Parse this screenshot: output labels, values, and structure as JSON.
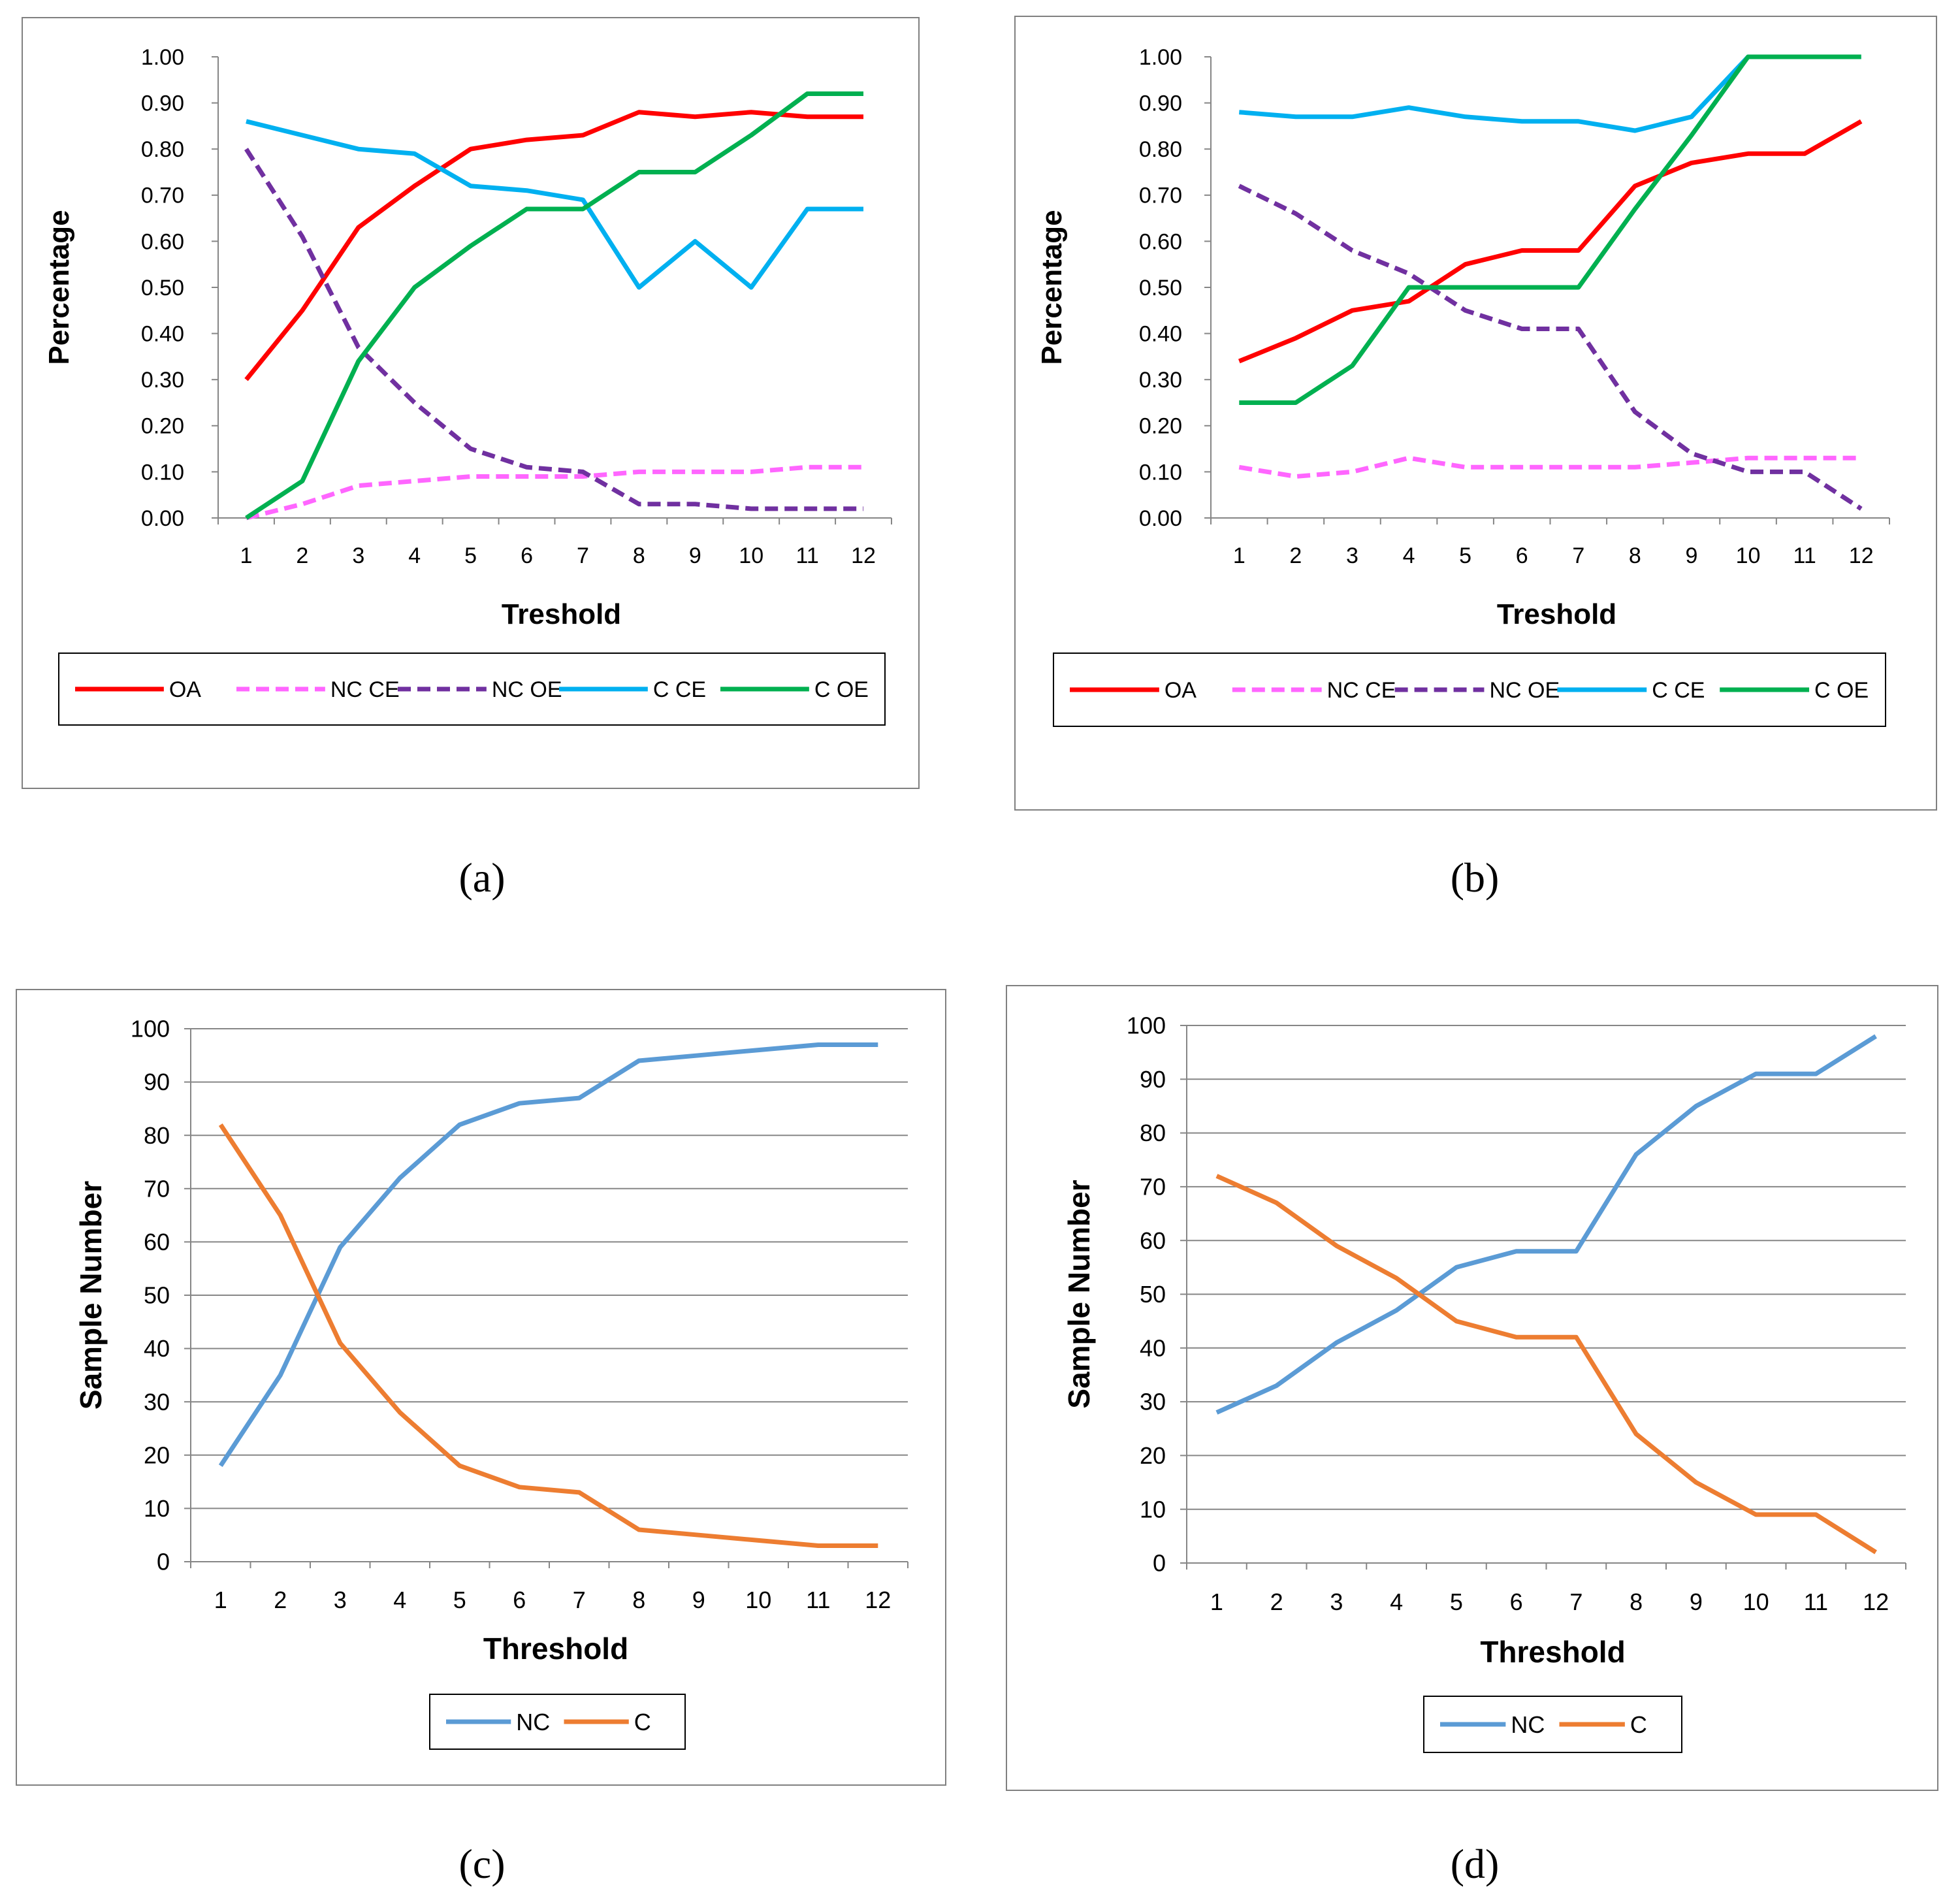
{
  "chart_data": [
    {
      "id": "a",
      "type": "line",
      "caption": "(a)",
      "xlabel": "Treshold",
      "ylabel": "Percentage",
      "x": [
        "1",
        "2",
        "3",
        "4",
        "5",
        "6",
        "7",
        "8",
        "9",
        "10",
        "11",
        "12"
      ],
      "ylim": [
        0,
        1
      ],
      "yticks": [
        "0.00",
        "0.10",
        "0.20",
        "0.30",
        "0.40",
        "0.50",
        "0.60",
        "0.70",
        "0.80",
        "0.90",
        "1.00"
      ],
      "grid": false,
      "legend": "bottom",
      "series": [
        {
          "name": "OA",
          "color": "#ff0000",
          "dash": false,
          "values": [
            0.3,
            0.45,
            0.63,
            0.72,
            0.8,
            0.82,
            0.83,
            0.88,
            0.87,
            0.88,
            0.87,
            0.87
          ]
        },
        {
          "name": "NC CE",
          "color": "#ff66ff",
          "dash": true,
          "values": [
            0.0,
            0.03,
            0.07,
            0.08,
            0.09,
            0.09,
            0.09,
            0.1,
            0.1,
            0.1,
            0.11,
            0.11
          ]
        },
        {
          "name": "NC OE",
          "color": "#7030a0",
          "dash": true,
          "values": [
            0.8,
            0.61,
            0.37,
            0.25,
            0.15,
            0.11,
            0.1,
            0.03,
            0.03,
            0.02,
            0.02,
            0.02
          ]
        },
        {
          "name": "C CE",
          "color": "#00b0f0",
          "dash": false,
          "values": [
            0.86,
            0.83,
            0.8,
            0.79,
            0.72,
            0.71,
            0.69,
            0.5,
            0.6,
            0.5,
            0.67,
            0.67
          ]
        },
        {
          "name": "C OE",
          "color": "#00b050",
          "dash": false,
          "values": [
            0.0,
            0.08,
            0.34,
            0.5,
            0.59,
            0.67,
            0.67,
            0.75,
            0.75,
            0.83,
            0.92,
            0.92
          ]
        }
      ]
    },
    {
      "id": "b",
      "type": "line",
      "caption": "(b)",
      "xlabel": "Treshold",
      "ylabel": "Percentage",
      "x": [
        "1",
        "2",
        "3",
        "4",
        "5",
        "6",
        "7",
        "8",
        "9",
        "10",
        "11",
        "12"
      ],
      "ylim": [
        0,
        1
      ],
      "yticks": [
        "0.00",
        "0.10",
        "0.20",
        "0.30",
        "0.40",
        "0.50",
        "0.60",
        "0.70",
        "0.80",
        "0.90",
        "1.00"
      ],
      "grid": false,
      "legend": "bottom",
      "series": [
        {
          "name": "OA",
          "color": "#ff0000",
          "dash": false,
          "values": [
            0.34,
            0.39,
            0.45,
            0.47,
            0.55,
            0.58,
            0.58,
            0.72,
            0.77,
            0.79,
            0.79,
            0.86
          ]
        },
        {
          "name": "NC CE",
          "color": "#ff66ff",
          "dash": true,
          "values": [
            0.11,
            0.09,
            0.1,
            0.13,
            0.11,
            0.11,
            0.11,
            0.11,
            0.12,
            0.13,
            0.13,
            0.13
          ]
        },
        {
          "name": "NC OE",
          "color": "#7030a0",
          "dash": true,
          "values": [
            0.72,
            0.66,
            0.58,
            0.53,
            0.45,
            0.41,
            0.41,
            0.23,
            0.14,
            0.1,
            0.1,
            0.02
          ]
        },
        {
          "name": "C CE",
          "color": "#00b0f0",
          "dash": false,
          "values": [
            0.88,
            0.87,
            0.87,
            0.89,
            0.87,
            0.86,
            0.86,
            0.84,
            0.87,
            1.0,
            1.0,
            1.0
          ]
        },
        {
          "name": "C OE",
          "color": "#00b050",
          "dash": false,
          "values": [
            0.25,
            0.25,
            0.33,
            0.5,
            0.5,
            0.5,
            0.5,
            0.67,
            0.83,
            1.0,
            1.0,
            1.0
          ]
        }
      ]
    },
    {
      "id": "c",
      "type": "line",
      "caption": "(c)",
      "xlabel": "Threshold",
      "ylabel": "Sample Number",
      "x": [
        "1",
        "2",
        "3",
        "4",
        "5",
        "6",
        "7",
        "8",
        "9",
        "10",
        "11",
        "12"
      ],
      "ylim": [
        0,
        100
      ],
      "yticks": [
        "0",
        "10",
        "20",
        "30",
        "40",
        "50",
        "60",
        "70",
        "80",
        "90",
        "100"
      ],
      "grid": true,
      "legend": "bottom",
      "series": [
        {
          "name": "NC",
          "color": "#5b9bd5",
          "dash": false,
          "values": [
            18,
            35,
            59,
            72,
            82,
            86,
            87,
            94,
            95,
            96,
            97,
            97
          ]
        },
        {
          "name": "C",
          "color": "#ed7d31",
          "dash": false,
          "values": [
            82,
            65,
            41,
            28,
            18,
            14,
            13,
            6,
            5,
            4,
            3,
            3
          ]
        }
      ]
    },
    {
      "id": "d",
      "type": "line",
      "caption": "(d)",
      "xlabel": "Threshold",
      "ylabel": "Sample Number",
      "x": [
        "1",
        "2",
        "3",
        "4",
        "5",
        "6",
        "7",
        "8",
        "9",
        "10",
        "11",
        "12"
      ],
      "ylim": [
        0,
        100
      ],
      "yticks": [
        "0",
        "10",
        "20",
        "30",
        "40",
        "50",
        "60",
        "70",
        "80",
        "90",
        "100"
      ],
      "grid": true,
      "legend": "bottom",
      "series": [
        {
          "name": "NC",
          "color": "#5b9bd5",
          "dash": false,
          "values": [
            28,
            33,
            41,
            47,
            55,
            58,
            58,
            76,
            85,
            91,
            91,
            98
          ]
        },
        {
          "name": "C",
          "color": "#ed7d31",
          "dash": false,
          "values": [
            72,
            67,
            59,
            53,
            45,
            42,
            42,
            24,
            15,
            9,
            9,
            2
          ]
        }
      ]
    }
  ]
}
